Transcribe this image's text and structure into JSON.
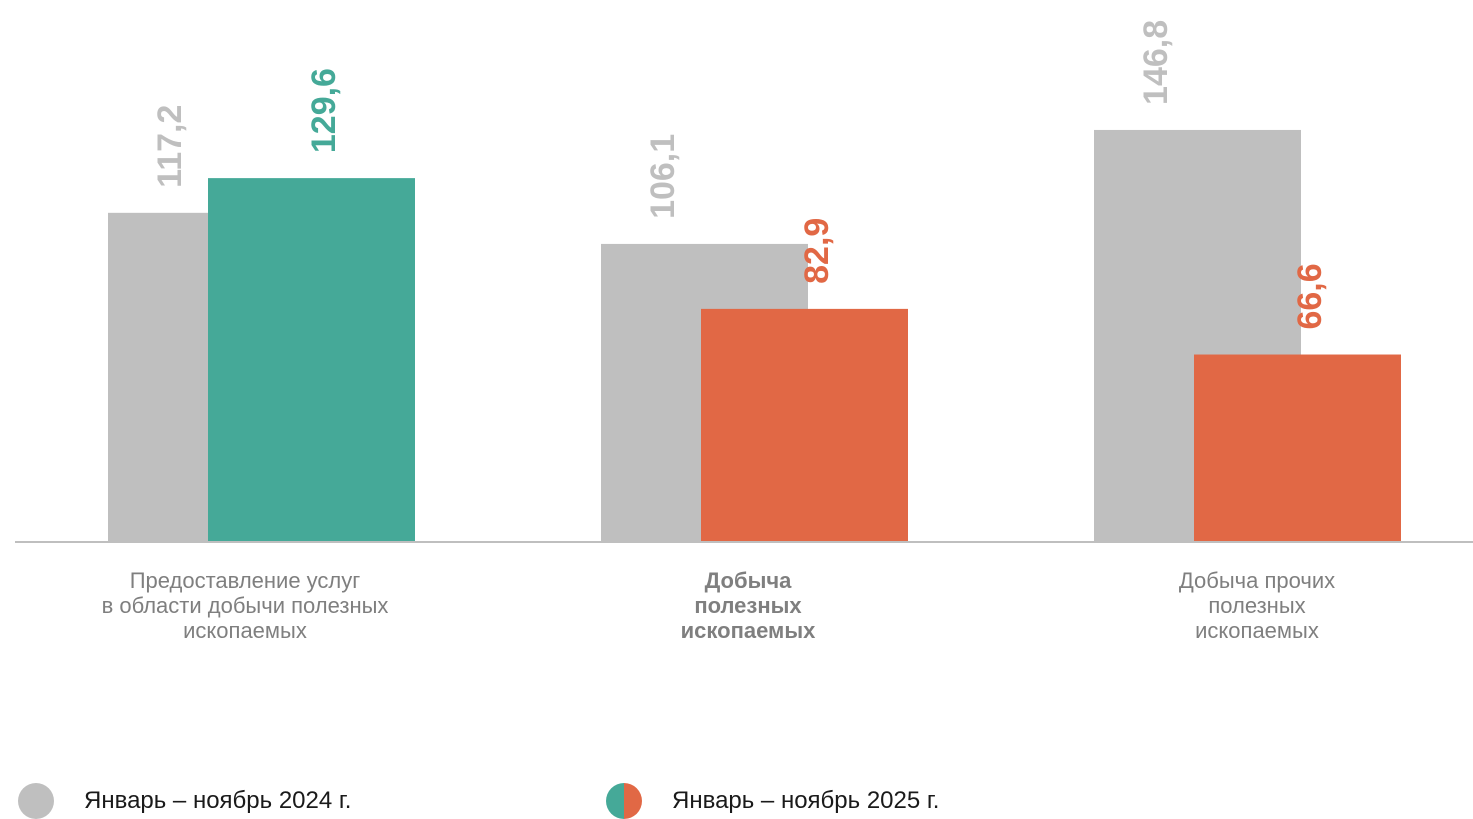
{
  "chart_data": {
    "type": "bar",
    "categories": [
      "Предоставление услуг\nв области добычи полезных\nископаемых",
      "Добыча\nполезных\nископаемых",
      "Добыча прочих\nполезных\nископаемых"
    ],
    "category_bold": [
      false,
      true,
      false
    ],
    "series": [
      {
        "name": "Январь – ноябрь 2024 г.",
        "values": [
          117.2,
          106.1,
          146.8
        ],
        "labels": [
          "117,2",
          "106,1",
          "146,8"
        ],
        "colors": [
          "#bfbfbf",
          "#bfbfbf",
          "#bfbfbf"
        ]
      },
      {
        "name": "Январь – ноябрь 2025 г.",
        "values": [
          129.6,
          82.9,
          66.6
        ],
        "labels": [
          "129,6",
          "82,9",
          "66,6"
        ],
        "colors": [
          "#45a998",
          "#e16845",
          "#e16845"
        ]
      }
    ],
    "ylim": [
      0,
      150
    ],
    "grid": false,
    "legend_placement": "bottom-left"
  },
  "colors": {
    "gray": "#bfbfbf",
    "teal": "#45a998",
    "orange": "#e16845",
    "axis": "#bfbfbf",
    "gray_label": "#bfbfbf"
  },
  "legend": {
    "item1": "Январь – ноябрь 2024 г.",
    "item2": "Январь – ноябрь 2025 г."
  }
}
